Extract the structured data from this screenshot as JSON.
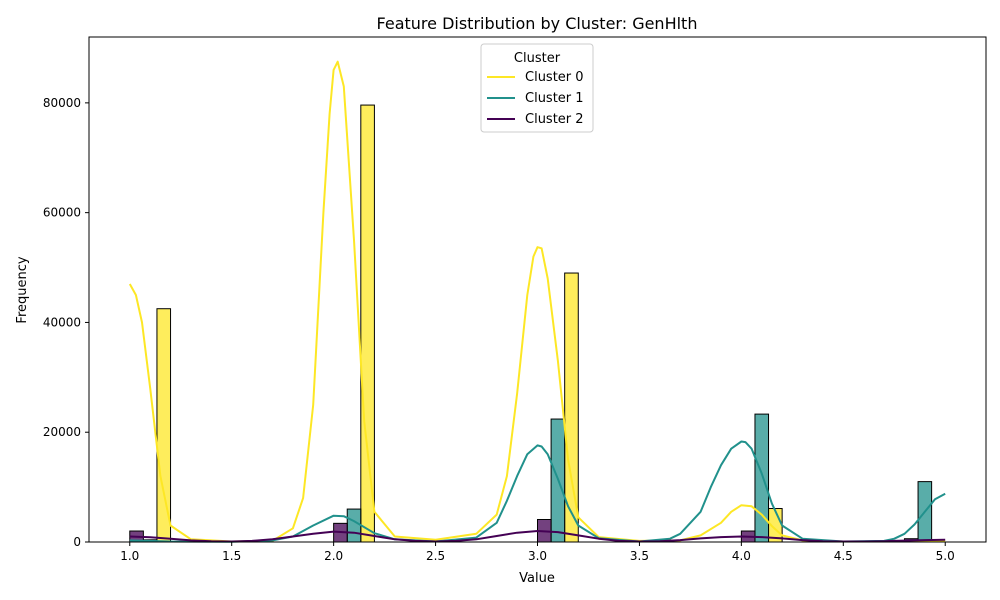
{
  "chart_data": {
    "type": "histogram",
    "title": "Feature Distribution by Cluster: GenHlth",
    "xlabel": "Value",
    "ylabel": "Frequency",
    "xlim": [
      0.8,
      5.2
    ],
    "ylim": [
      0,
      92000
    ],
    "x_ticks": [
      1.0,
      1.5,
      2.0,
      2.5,
      3.0,
      3.5,
      4.0,
      4.5,
      5.0
    ],
    "x_tick_labels": [
      "1.0",
      "1.5",
      "2.0",
      "2.5",
      "3.0",
      "3.5",
      "4.0",
      "4.5",
      "5.0"
    ],
    "y_ticks": [
      0,
      20000,
      40000,
      60000,
      80000
    ],
    "y_tick_labels": [
      "0",
      "20000",
      "40000",
      "60000",
      "80000"
    ],
    "bin_edges": [
      1.0,
      1.0667,
      1.1333,
      1.2,
      1.2667,
      1.3333,
      1.4,
      1.4667,
      1.5333,
      1.6,
      1.6667,
      1.7333,
      1.8,
      1.8667,
      1.9333,
      2.0,
      2.0667,
      2.1333,
      2.2,
      2.2667,
      2.3333,
      2.4,
      2.4667,
      2.5333,
      2.6,
      2.6667,
      2.7333,
      2.8,
      2.8667,
      2.9333,
      3.0,
      3.0667,
      3.1333,
      3.2,
      3.2667,
      3.3333,
      3.4,
      3.4667,
      3.5333,
      3.6,
      3.6667,
      3.7333,
      3.8,
      3.8667,
      3.9333,
      4.0,
      4.0667,
      4.1333,
      4.2,
      4.2667,
      4.3333,
      4.4,
      4.4667,
      4.5333,
      4.6,
      4.6667,
      4.7333,
      4.8,
      4.8667,
      4.9333,
      5.0
    ],
    "multiple": "dodge",
    "kde": true,
    "legend": {
      "title": "Cluster",
      "position": "top-center"
    },
    "grid": false,
    "series": [
      {
        "name": "Cluster 0",
        "color": "#fde725",
        "bars": [
          {
            "x": [
              1.1333,
              1.2
            ],
            "count": 42500
          },
          {
            "x": [
              2.1333,
              2.2
            ],
            "count": 79600
          },
          {
            "x": [
              3.1333,
              3.2
            ],
            "count": 49000
          },
          {
            "x": [
              4.1333,
              4.2
            ],
            "count": 6100
          }
        ],
        "kde": {
          "x": [
            1.0,
            1.03,
            1.06,
            1.1,
            1.15,
            1.2,
            1.3,
            1.5,
            1.7,
            1.8,
            1.85,
            1.9,
            1.95,
            1.98,
            2.0,
            2.02,
            2.05,
            2.1,
            2.15,
            2.2,
            2.3,
            2.5,
            2.7,
            2.8,
            2.85,
            2.9,
            2.95,
            2.98,
            3.0,
            3.02,
            3.05,
            3.1,
            3.15,
            3.2,
            3.3,
            3.5,
            3.7,
            3.8,
            3.9,
            3.95,
            4.0,
            4.05,
            4.1,
            4.15,
            4.2,
            4.3,
            4.5,
            4.7,
            4.9,
            5.0
          ],
          "y": [
            47000,
            45000,
            40000,
            28000,
            12000,
            3000,
            500,
            100,
            200,
            2500,
            8000,
            25000,
            60000,
            78000,
            86000,
            87500,
            83000,
            55000,
            22000,
            5500,
            1000,
            400,
            1500,
            5000,
            12000,
            27000,
            45000,
            52000,
            53700,
            53500,
            48000,
            33000,
            15000,
            4500,
            900,
            200,
            300,
            1200,
            3500,
            5500,
            6700,
            6500,
            5000,
            2900,
            1200,
            300,
            100,
            100,
            200,
            200
          ]
        }
      },
      {
        "name": "Cluster 1",
        "color": "#21918c",
        "bars": [
          {
            "x": [
              1.0667,
              1.1333
            ],
            "count": 400
          },
          {
            "x": [
              2.0667,
              2.1333
            ],
            "count": 6000
          },
          {
            "x": [
              3.0667,
              3.1333
            ],
            "count": 22400
          },
          {
            "x": [
              4.0667,
              4.1333
            ],
            "count": 23300
          },
          {
            "x": [
              4.8667,
              4.9333
            ],
            "count": 11000
          }
        ],
        "kde": {
          "x": [
            1.0,
            1.2,
            1.5,
            1.7,
            1.8,
            1.9,
            2.0,
            2.05,
            2.1,
            2.2,
            2.3,
            2.5,
            2.7,
            2.8,
            2.85,
            2.9,
            2.95,
            3.0,
            3.02,
            3.05,
            3.1,
            3.15,
            3.2,
            3.3,
            3.5,
            3.65,
            3.7,
            3.8,
            3.85,
            3.9,
            3.95,
            4.0,
            4.02,
            4.05,
            4.1,
            4.15,
            4.2,
            4.3,
            4.5,
            4.7,
            4.75,
            4.8,
            4.85,
            4.9,
            4.95,
            5.0
          ],
          "y": [
            300,
            100,
            50,
            300,
            1000,
            3000,
            4800,
            4700,
            3800,
            1600,
            500,
            100,
            800,
            3500,
            7500,
            12000,
            16000,
            17600,
            17400,
            16000,
            11500,
            6500,
            3000,
            700,
            100,
            600,
            1500,
            5500,
            10000,
            14000,
            17000,
            18300,
            18200,
            17000,
            12500,
            7000,
            3000,
            600,
            100,
            200,
            600,
            1500,
            3200,
            5500,
            7800,
            8800
          ]
        }
      },
      {
        "name": "Cluster 2",
        "color": "#440154",
        "bars": [
          {
            "x": [
              1.0,
              1.0667
            ],
            "count": 2000
          },
          {
            "x": [
              2.0,
              2.0667
            ],
            "count": 3400
          },
          {
            "x": [
              3.0,
              3.0667
            ],
            "count": 4100
          },
          {
            "x": [
              4.0,
              4.0667
            ],
            "count": 2000
          },
          {
            "x": [
              4.8,
              4.8667
            ],
            "count": 600
          }
        ],
        "kde": {
          "x": [
            1.0,
            1.1,
            1.2,
            1.3,
            1.4,
            1.5,
            1.6,
            1.7,
            1.8,
            1.9,
            2.0,
            2.1,
            2.2,
            2.3,
            2.4,
            2.5,
            2.6,
            2.7,
            2.8,
            2.9,
            3.0,
            3.1,
            3.2,
            3.3,
            3.4,
            3.5,
            3.6,
            3.7,
            3.8,
            3.9,
            4.0,
            4.1,
            4.2,
            4.3,
            4.4,
            4.5,
            4.6,
            4.7,
            4.8,
            4.9,
            5.0
          ],
          "y": [
            1000,
            850,
            600,
            300,
            150,
            100,
            200,
            500,
            1000,
            1500,
            1900,
            1700,
            1100,
            500,
            200,
            100,
            200,
            500,
            1100,
            1700,
            2000,
            1800,
            1200,
            600,
            200,
            100,
            150,
            350,
            650,
            900,
            1000,
            900,
            650,
            350,
            150,
            100,
            100,
            150,
            250,
            350,
            400
          ]
        }
      }
    ]
  }
}
